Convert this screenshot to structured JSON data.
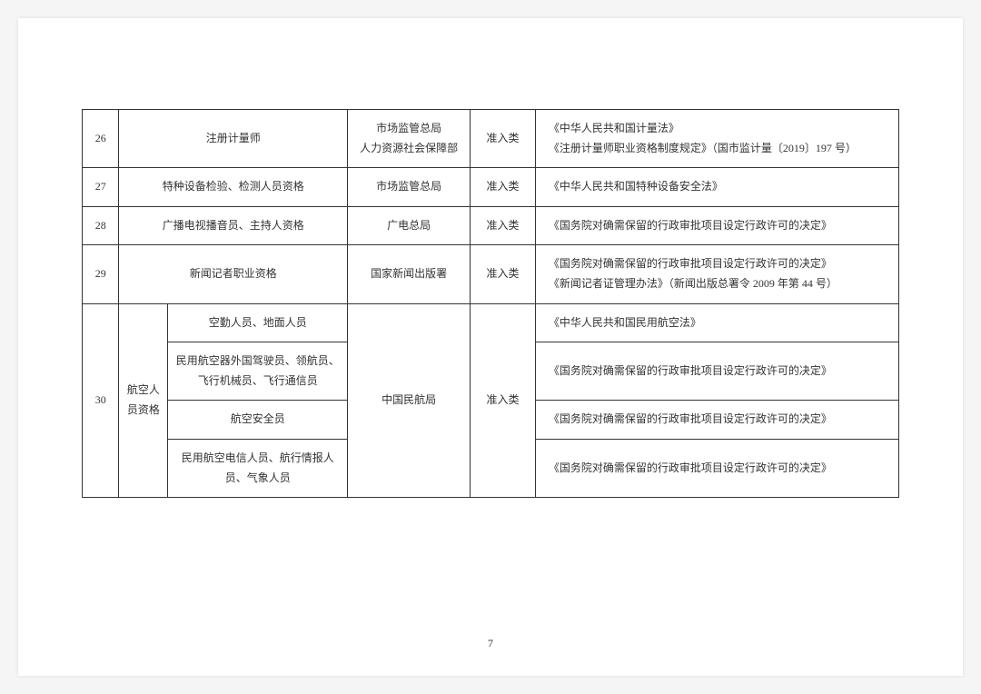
{
  "page_number": "7",
  "rows": [
    {
      "num": "26",
      "name": "注册计量师",
      "dept": "市场监管总局\n人力资源社会保障部",
      "type": "准入类",
      "basis": "《中华人民共和国计量法》\n《注册计量师职业资格制度规定》（国市监计量〔2019〕197 号）"
    },
    {
      "num": "27",
      "name": "特种设备检验、检测人员资格",
      "dept": "市场监管总局",
      "type": "准入类",
      "basis": "《中华人民共和国特种设备安全法》"
    },
    {
      "num": "28",
      "name": "广播电视播音员、主持人资格",
      "dept": "广电总局",
      "type": "准入类",
      "basis": "《国务院对确需保留的行政审批项目设定行政许可的决定》"
    },
    {
      "num": "29",
      "name": "新闻记者职业资格",
      "dept": "国家新闻出版署",
      "type": "准入类",
      "basis": "《国务院对确需保留的行政审批项目设定行政许可的决定》\n《新闻记者证管理办法》（新闻出版总署令 2009 年第 44 号）"
    }
  ],
  "row30": {
    "num": "30",
    "group_name": "航空人员资格",
    "dept": "中国民航局",
    "type": "准入类",
    "subs": [
      {
        "sub": "空勤人员、地面人员",
        "basis": "《中华人民共和国民用航空法》"
      },
      {
        "sub": "民用航空器外国驾驶员、领航员、飞行机械员、飞行通信员",
        "basis": "《国务院对确需保留的行政审批项目设定行政许可的决定》"
      },
      {
        "sub": "航空安全员",
        "basis": "《国务院对确需保留的行政审批项目设定行政许可的决定》"
      },
      {
        "sub": "民用航空电信人员、航行情报人员、气象人员",
        "basis": "《国务院对确需保留的行政审批项目设定行政许可的决定》"
      }
    ]
  }
}
